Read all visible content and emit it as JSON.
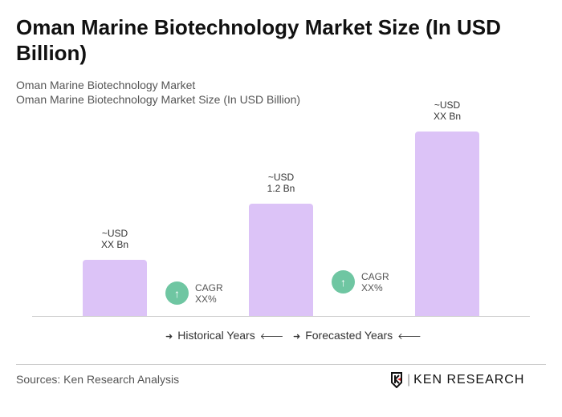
{
  "title": "Oman Marine Biotechnology Market Size (In USD Billion)",
  "subtitle1": "Oman Marine Biotechnology Market",
  "subtitle2": "Oman Marine Biotechnology Market Size (In USD Billion)",
  "chart_data": {
    "type": "bar",
    "values": [
      0.6,
      1.2,
      1.97
    ],
    "data_labels": [
      [
        "~USD",
        "XX Bn"
      ],
      [
        "~USD",
        "1.2 Bn"
      ],
      [
        "~USD",
        "XX Bn"
      ]
    ],
    "cagr": [
      {
        "label": "CAGR",
        "value": "XX%"
      },
      {
        "label": "CAGR",
        "value": "XX%"
      }
    ],
    "legend": [
      "Historical Years",
      "Forecasted Years"
    ],
    "bar_color": "#dcc3f7",
    "cagr_color": "#6fc6a2"
  },
  "source": "Sources: Ken Research Analysis",
  "logo_text": "KEN RESEARCH"
}
